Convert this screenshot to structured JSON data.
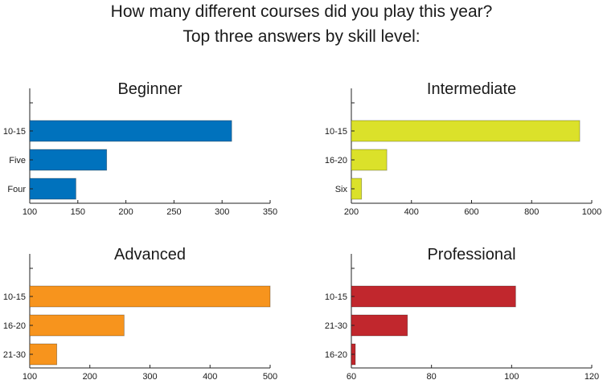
{
  "header": {
    "title": "How many different courses did you play this year?",
    "subtitle": "Top three answers by skill level:"
  },
  "chart_data": [
    {
      "type": "bar",
      "orientation": "horizontal",
      "title": "Beginner",
      "categories": [
        "10-15",
        "Five",
        "Four"
      ],
      "values": [
        310,
        180,
        148
      ],
      "xlim": [
        100,
        350
      ],
      "xticks": [
        100,
        150,
        200,
        250,
        300,
        350
      ],
      "color": "#0072bd"
    },
    {
      "type": "bar",
      "orientation": "horizontal",
      "title": "Intermediate",
      "categories": [
        "10-15",
        "16-20",
        "Six"
      ],
      "values": [
        960,
        318,
        234
      ],
      "xlim": [
        200,
        1000
      ],
      "xticks": [
        200,
        400,
        600,
        800,
        1000
      ],
      "color": "#dbe12a"
    },
    {
      "type": "bar",
      "orientation": "horizontal",
      "title": "Advanced",
      "categories": [
        "10-15",
        "16-20",
        "21-30"
      ],
      "values": [
        500,
        257,
        145
      ],
      "xlim": [
        100,
        500
      ],
      "xticks": [
        100,
        200,
        300,
        400,
        500
      ],
      "color": "#f7941d"
    },
    {
      "type": "bar",
      "orientation": "horizontal",
      "title": "Professional",
      "categories": [
        "10-15",
        "21-30",
        "16-20"
      ],
      "values": [
        101,
        74,
        61
      ],
      "xlim": [
        60,
        120
      ],
      "xticks": [
        60,
        80,
        100,
        120
      ],
      "color": "#c1272d"
    }
  ]
}
